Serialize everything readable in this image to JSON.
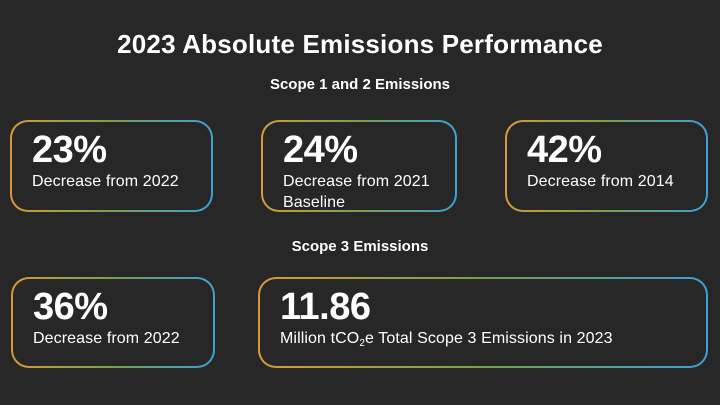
{
  "page": {
    "title": "2023 Absolute Emissions Performance",
    "colors": {
      "bg": "#272727",
      "text": "#ffffff",
      "grad-start": "#d69a3d",
      "grad-mid": "#74a24e",
      "grad-end": "#3fa0d6"
    }
  },
  "sections": [
    {
      "heading": "Scope 1 and 2 Emissions",
      "cards": [
        {
          "value": "23%",
          "description": "Decrease from 2022"
        },
        {
          "value": "24%",
          "description": "Decrease from 2021 Baseline"
        },
        {
          "value": "42%",
          "description": "Decrease from 2014"
        }
      ]
    },
    {
      "heading": "Scope 3 Emissions",
      "cards": [
        {
          "value": "36%",
          "description": "Decrease from 2022"
        },
        {
          "value": "11.86",
          "description_prefix": "Million tCO",
          "description_sub": "2",
          "description_suffix": "e Total Scope 3 Emissions in 2023"
        }
      ]
    }
  ],
  "chart_data": {
    "type": "table",
    "title": "2023 Absolute Emissions Performance",
    "groups": [
      {
        "label": "Scope 1 and 2 Emissions",
        "stats": [
          {
            "value": 23,
            "unit": "%",
            "description": "Decrease from 2022"
          },
          {
            "value": 24,
            "unit": "%",
            "description": "Decrease from 2021 Baseline"
          },
          {
            "value": 42,
            "unit": "%",
            "description": "Decrease from 2014"
          }
        ]
      },
      {
        "label": "Scope 3 Emissions",
        "stats": [
          {
            "value": 36,
            "unit": "%",
            "description": "Decrease from 2022"
          },
          {
            "value": 11.86,
            "unit": "Million tCO2e",
            "description": "Total Scope 3 Emissions in 2023"
          }
        ]
      }
    ]
  }
}
